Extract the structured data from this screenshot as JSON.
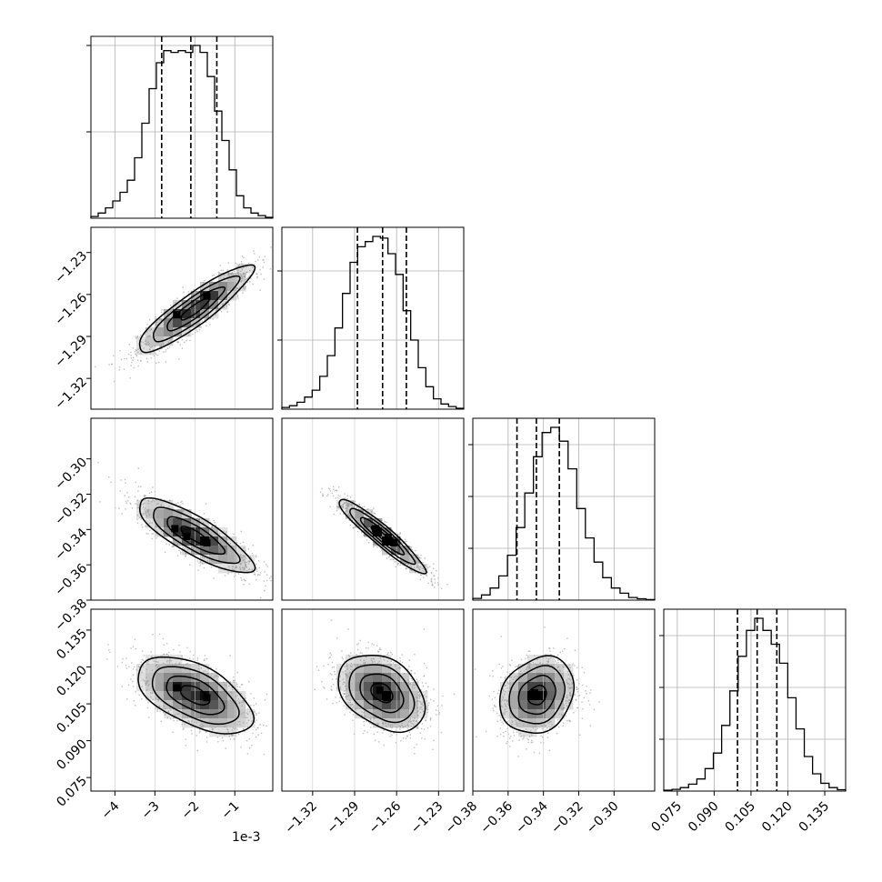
{
  "figure": {
    "x_offset_label": "1e-3"
  },
  "chart_data": {
    "type": "corner",
    "parameters": [
      {
        "range": [
          -4.6,
          -0.05
        ],
        "ticks": [
          -4,
          -3,
          -2,
          -1
        ],
        "tick_labels": [
          "−4",
          "−3",
          "−2",
          "−1"
        ],
        "scale_factor": "1e-3",
        "quantiles": [
          -2.83,
          -2.1,
          -1.45
        ],
        "hist": [
          0.01,
          0.03,
          0.06,
          0.1,
          0.15,
          0.22,
          0.35,
          0.55,
          0.75,
          0.9,
          0.97,
          0.96,
          0.97,
          0.96,
          1.0,
          0.96,
          0.82,
          0.62,
          0.45,
          0.28,
          0.13,
          0.06,
          0.03,
          0.015,
          0.005
        ],
        "hist_yticks": [
          0.5,
          1.0
        ]
      },
      {
        "range": [
          -1.342,
          -1.212
        ],
        "ticks": [
          -1.32,
          -1.29,
          -1.26,
          -1.23
        ],
        "tick_labels": [
          "−1.32",
          "−1.29",
          "−1.26",
          "−1.23"
        ],
        "quantiles": [
          -1.288,
          -1.27,
          -1.253
        ],
        "hist": [
          0.01,
          0.02,
          0.04,
          0.07,
          0.11,
          0.19,
          0.31,
          0.47,
          0.67,
          0.85,
          0.94,
          0.97,
          1.0,
          0.99,
          0.9,
          0.78,
          0.57,
          0.4,
          0.24,
          0.13,
          0.06,
          0.03,
          0.015,
          0.005
        ],
        "hist_yticks": [
          0.4,
          0.8
        ]
      },
      {
        "range": [
          -0.38,
          -0.277
        ],
        "ticks": [
          -0.38,
          -0.36,
          -0.34,
          -0.32,
          -0.3
        ],
        "tick_labels": [
          "−0.38",
          "−0.36",
          "−0.34",
          "−0.32",
          "−0.30"
        ],
        "quantiles": [
          -0.355,
          -0.344,
          -0.331
        ],
        "hist": [
          0.01,
          0.03,
          0.07,
          0.14,
          0.26,
          0.42,
          0.62,
          0.83,
          0.97,
          1.0,
          0.92,
          0.76,
          0.53,
          0.36,
          0.22,
          0.13,
          0.07,
          0.04,
          0.015,
          0.008,
          0.003
        ],
        "hist_yticks": [
          0.3,
          0.6,
          0.9
        ]
      },
      {
        "range": [
          0.0695,
          0.1435
        ],
        "ticks": [
          0.075,
          0.09,
          0.105,
          0.12,
          0.135
        ],
        "tick_labels": [
          "0.075",
          "0.090",
          "0.105",
          "0.120",
          "0.135"
        ],
        "quantiles": [
          0.0995,
          0.1075,
          0.1155
        ],
        "hist": [
          0.005,
          0.01,
          0.02,
          0.04,
          0.07,
          0.13,
          0.22,
          0.38,
          0.58,
          0.78,
          0.93,
          1.0,
          0.93,
          0.85,
          0.74,
          0.54,
          0.36,
          0.2,
          0.1,
          0.045,
          0.02,
          0.008
        ],
        "hist_yticks": [
          0.3,
          0.6,
          0.9
        ]
      }
    ],
    "pairs": [
      {
        "i": 1,
        "j": 0,
        "mean": [
          -2.0,
          -1.2705
        ],
        "sd": [
          0.72,
          0.0155
        ],
        "rho": 0.9,
        "peaks": [
          [
            -2.45,
            -1.2745
          ],
          [
            -1.7,
            -1.261
          ]
        ]
      },
      {
        "i": 2,
        "j": 0,
        "mean": [
          -2.0,
          -0.3435
        ],
        "sd": [
          0.72,
          0.0105
        ],
        "rho": -0.82,
        "peaks": [
          [
            -2.5,
            -0.3395
          ],
          [
            -2.2,
            -0.344
          ],
          [
            -1.7,
            -0.3475
          ]
        ]
      },
      {
        "i": 2,
        "j": 1,
        "mean": [
          -1.2705,
          -0.3435
        ],
        "sd": [
          0.0155,
          0.0105
        ],
        "rho": -0.94,
        "peaks": [
          [
            -1.275,
            -0.3395
          ],
          [
            -1.266,
            -0.3445
          ],
          [
            -1.262,
            -0.3475
          ]
        ]
      },
      {
        "i": 3,
        "j": 0,
        "mean": [
          -2.0,
          0.1085
        ],
        "sd": [
          0.72,
          0.0078
        ],
        "rho": -0.55,
        "peaks": [
          [
            -2.45,
            0.1115
          ],
          [
            -1.7,
            0.1075
          ]
        ]
      },
      {
        "i": 3,
        "j": 1,
        "mean": [
          -1.2705,
          0.1095
        ],
        "sd": [
          0.0155,
          0.0078
        ],
        "rho": -0.35,
        "peaks": [
          [
            -1.272,
            0.1105
          ],
          [
            -1.267,
            0.1075
          ]
        ]
      },
      {
        "i": 3,
        "j": 2,
        "mean": [
          -0.3435,
          0.1085
        ],
        "sd": [
          0.0105,
          0.0078
        ],
        "rho": 0.2,
        "peaks": [
          [
            -0.344,
            0.108
          ],
          [
            -0.345,
            0.1095
          ]
        ]
      }
    ],
    "contour_levels_sigma": [
      0.5,
      1.0,
      1.5,
      2.0
    ],
    "grid": true,
    "legend": "none"
  }
}
